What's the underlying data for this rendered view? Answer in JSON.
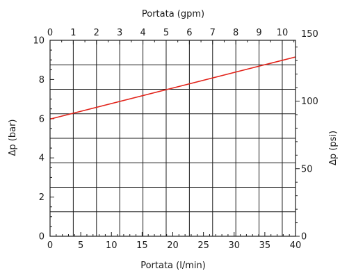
{
  "chart_data": {
    "type": "line",
    "title": "",
    "xlabel": "Portata (l/min)",
    "x2label": "Portata (gpm)",
    "ylabel": "Δp (bar)",
    "y2label": "Δp (psi)",
    "xlim": [
      0,
      40
    ],
    "ylim": [
      0,
      10
    ],
    "x2lim": [
      0,
      10.57
    ],
    "y2lim": [
      0,
      145
    ],
    "x_ticks": [
      "0",
      "5",
      "10",
      "15",
      "20",
      "25",
      "30",
      "35",
      "40"
    ],
    "y_ticks": [
      "0",
      "2",
      "4",
      "6",
      "8",
      "10"
    ],
    "x2_ticks": [
      "0",
      "1",
      "2",
      "3",
      "4",
      "5",
      "6",
      "7",
      "8",
      "9",
      "10"
    ],
    "y2_ticks": [
      "0",
      "50",
      "100",
      "150"
    ],
    "x2_tick_values": [
      0,
      1,
      2,
      3,
      4,
      5,
      6,
      7,
      8,
      9,
      10
    ],
    "y2_tick_values": [
      0,
      50,
      100,
      150
    ],
    "grid": true,
    "series": [
      {
        "x": [
          0,
          40
        ],
        "y": [
          5.98,
          9.15
        ],
        "color": "#e2231a"
      }
    ]
  }
}
